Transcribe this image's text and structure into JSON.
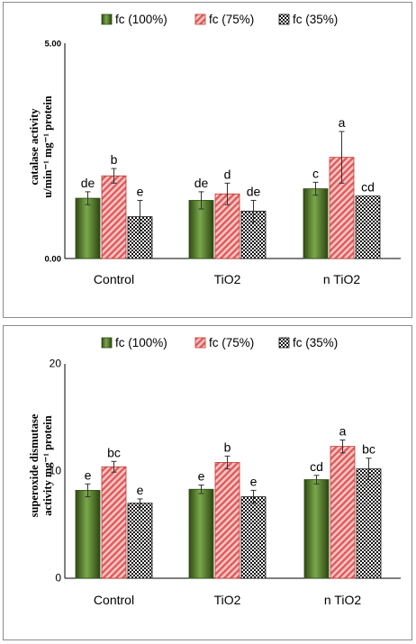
{
  "legend": [
    "fc (100%)",
    "fc (75%)",
    "fc (35%)"
  ],
  "series_styles": [
    "green-gradient",
    "pink-diagonal-hatch",
    "black-checker"
  ],
  "colors": {
    "green": "#4e7a2a",
    "green_dark": "#2e4a14",
    "pink": "#e05a5a",
    "axis": "#000000"
  },
  "chart_data": [
    {
      "type": "bar",
      "ylabel_lines": [
        "catalase activity",
        "u/min⁻¹ mg⁻¹ protein"
      ],
      "ytick_labels": [
        "0.00",
        "5.00"
      ],
      "ylim": [
        0,
        5
      ],
      "categories": [
        "Control",
        "TiO2",
        "n TiO2"
      ],
      "series": [
        {
          "name": "fc (100%)",
          "values": [
            1.4,
            1.35,
            1.62
          ],
          "errors": [
            0.15,
            0.2,
            0.15
          ],
          "labels": [
            "de",
            "de",
            "c"
          ]
        },
        {
          "name": "fc (75%)",
          "values": [
            1.92,
            1.5,
            2.35
          ],
          "errors": [
            0.17,
            0.25,
            0.6
          ],
          "labels": [
            "b",
            "d",
            "a"
          ]
        },
        {
          "name": "fc (35%)",
          "values": [
            0.97,
            1.1,
            1.45
          ],
          "errors": [
            0.38,
            0.25,
            0.0
          ],
          "labels": [
            "e",
            "de",
            "cd"
          ]
        }
      ]
    },
    {
      "type": "bar",
      "ylabel_lines": [
        "superoxide dismutase",
        "activity mg⁻¹ protein"
      ],
      "ytick_labels": [
        "0",
        "10",
        "20"
      ],
      "ylim": [
        0,
        20
      ],
      "categories": [
        "Control",
        "TiO2",
        "n TiO2"
      ],
      "series": [
        {
          "name": "fc (100%)",
          "values": [
            8.2,
            8.3,
            9.2
          ],
          "errors": [
            0.6,
            0.4,
            0.4
          ],
          "labels": [
            "e",
            "e",
            "cd"
          ]
        },
        {
          "name": "fc (75%)",
          "values": [
            10.4,
            10.8,
            12.3
          ],
          "errors": [
            0.5,
            0.6,
            0.6
          ],
          "labels": [
            "bc",
            "b",
            "a"
          ]
        },
        {
          "name": "fc (35%)",
          "values": [
            7.0,
            7.6,
            10.2
          ],
          "errors": [
            0.4,
            0.6,
            1.0
          ],
          "labels": [
            "e",
            "e",
            "bc"
          ]
        }
      ]
    }
  ]
}
